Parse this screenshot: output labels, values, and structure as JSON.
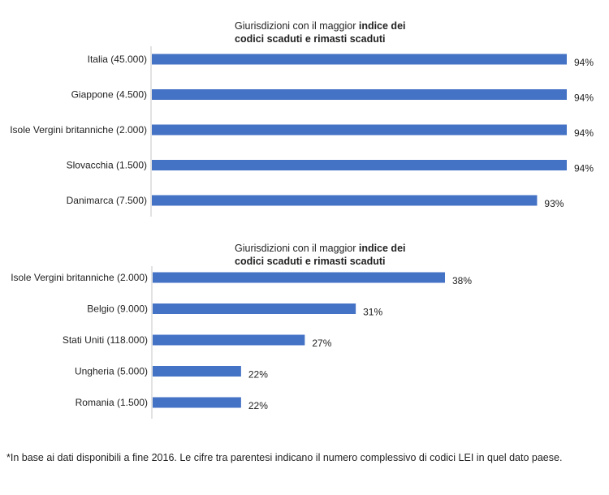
{
  "colors": {
    "bar": "#4472C4",
    "axis": "#D9D9D9",
    "text": "#222222"
  },
  "chart_data": [
    {
      "type": "bar",
      "orientation": "horizontal",
      "title_plain": "Giurisdizioni con il maggior ",
      "title_bold_1": "indice dei",
      "title_bold_2": "codici scaduti e rimasti scaduti",
      "categories": [
        "Italia (45.000)",
        "Giappone (4.500)",
        "Isole Vergini britanniche (2.000)",
        "Slovacchia (1.500)",
        "Danimarca (7.500)"
      ],
      "values": [
        94,
        94,
        94,
        94,
        93
      ],
      "data_labels": [
        "94%",
        "94%",
        "94%",
        "94%",
        "93%"
      ],
      "xlim": [
        80,
        94
      ],
      "xlabel": "",
      "ylabel": "",
      "grid": false,
      "legend": "none"
    },
    {
      "type": "bar",
      "orientation": "horizontal",
      "title_plain": "Giurisdizioni con il maggior ",
      "title_bold_1": "indice dei",
      "title_bold_2": "codici scaduti e rimasti scaduti",
      "categories": [
        "Isole Vergini britanniche (2.000)",
        "Belgio (9.000)",
        "Stati Uniti (118.000)",
        "Ungheria (5.000)",
        "Romania (1.500)"
      ],
      "values": [
        38,
        31,
        27,
        22,
        22
      ],
      "data_labels": [
        "38%",
        "31%",
        "27%",
        "22%",
        "22%"
      ],
      "xlim": [
        15,
        38
      ],
      "xlabel": "",
      "ylabel": "",
      "grid": false,
      "legend": "none"
    }
  ],
  "footnote": "*In base ai dati disponibili a fine 2016. Le cifre tra parentesi indicano il numero complessivo di codici LEI in quel dato paese."
}
